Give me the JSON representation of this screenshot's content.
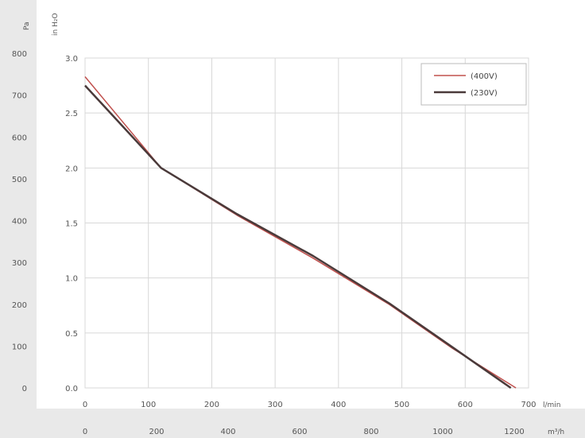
{
  "chart_data": {
    "type": "line",
    "x_top": {
      "ticks": [
        0,
        100,
        200,
        300,
        400,
        500,
        600,
        700
      ],
      "tick_labels": [
        "0",
        "100",
        "200",
        "300",
        "400",
        "500",
        "600",
        "700"
      ],
      "unit": "l/min",
      "range": [
        0,
        700
      ]
    },
    "x_bottom": {
      "tick_labels": [
        "0",
        "200",
        "400",
        "600",
        "800",
        "1000",
        "1200"
      ],
      "unit": "m³/h"
    },
    "y_left_outer": {
      "tick_labels": [
        "0",
        "100",
        "200",
        "300",
        "400",
        "500",
        "600",
        "700",
        "800"
      ],
      "unit": "Pa"
    },
    "y_left_inner": {
      "ticks": [
        0,
        0.5,
        1.0,
        1.5,
        2.0,
        2.5,
        3.0
      ],
      "tick_labels": [
        "0.0",
        "0.5",
        "1.0",
        "1.5",
        "2.0",
        "2.5",
        "3.0"
      ],
      "unit": "in H₂O",
      "range": [
        0,
        3.0
      ]
    },
    "grid": true,
    "legend": {
      "position": "top-right"
    },
    "series": [
      {
        "name": "(400V)",
        "color": "#c0504d",
        "points": [
          [
            0,
            2.83
          ],
          [
            120,
            2.0
          ],
          [
            240,
            1.57
          ],
          [
            360,
            1.18
          ],
          [
            480,
            0.76
          ],
          [
            580,
            0.36
          ],
          [
            680,
            0.0
          ]
        ]
      },
      {
        "name": "(230V)",
        "color": "#4a3a3a",
        "points": [
          [
            0,
            2.75
          ],
          [
            120,
            2.0
          ],
          [
            240,
            1.58
          ],
          [
            360,
            1.2
          ],
          [
            480,
            0.77
          ],
          [
            580,
            0.37
          ],
          [
            672,
            0.0
          ]
        ]
      }
    ]
  }
}
